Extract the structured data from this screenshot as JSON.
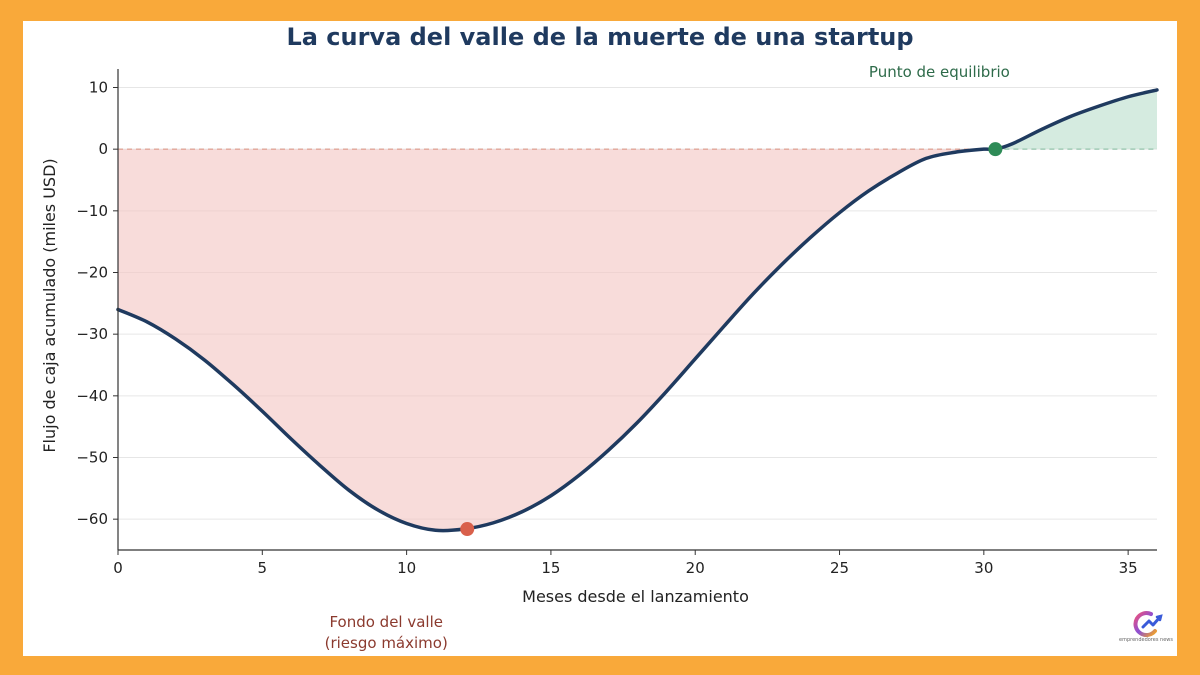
{
  "colors": {
    "frame": "#f9a93a",
    "curve": "#1f3a5f",
    "loss_fill": "#f4c9c6",
    "profit_fill": "#bfe0cf",
    "valley_marker": "#d9604b",
    "breakeven_marker": "#2e8b57",
    "valley_label": "#8b3a2e",
    "breakeven_label": "#2e6b4a"
  },
  "chart_data": {
    "type": "area",
    "title": "La curva del valle de la muerte de una startup",
    "xlabel": "Meses desde el lanzamiento",
    "ylabel": "Flujo de caja acumulado (miles USD)",
    "xlim": [
      0,
      36
    ],
    "ylim": [
      -65,
      13
    ],
    "xticks": [
      "0",
      "5",
      "10",
      "15",
      "20",
      "25",
      "30",
      "35"
    ],
    "xtick_values": [
      0,
      5,
      10,
      15,
      20,
      25,
      30,
      35
    ],
    "yticks": [
      "10",
      "0",
      "−10",
      "−20",
      "−30",
      "−40",
      "−50",
      "−60"
    ],
    "ytick_values": [
      10,
      0,
      -10,
      -20,
      -30,
      -40,
      -50,
      -60
    ],
    "grid": "horizontal",
    "series": [
      {
        "x": [
          0,
          1,
          2,
          3,
          4,
          5,
          6,
          7,
          8,
          9,
          10,
          11,
          12,
          13,
          14,
          15,
          16,
          17,
          18,
          19,
          20,
          21,
          22,
          23,
          24,
          25,
          26,
          27,
          28,
          29,
          30,
          30.4,
          31,
          32,
          33,
          34,
          35,
          36
        ],
        "y": [
          -26,
          -28,
          -30.8,
          -34.2,
          -38.2,
          -42.5,
          -47,
          -51.3,
          -55.3,
          -58.5,
          -60.7,
          -61.8,
          -61.6,
          -60.6,
          -58.8,
          -56.2,
          -52.8,
          -48.8,
          -44.3,
          -39.3,
          -34,
          -28.7,
          -23.5,
          -18.7,
          -14.3,
          -10.3,
          -6.8,
          -3.9,
          -1.5,
          -0.5,
          0,
          0,
          0.9,
          3.2,
          5.3,
          7,
          8.5,
          9.6
        ]
      }
    ],
    "annotations": [
      {
        "label": "Fondo del valle\n(riesgo máximo)",
        "x": 12.1,
        "y": -61.6
      },
      {
        "label": "Punto de equilibrio",
        "x": 30.4,
        "y": 0
      }
    ]
  },
  "logo": {
    "text": "emprendedores news"
  }
}
